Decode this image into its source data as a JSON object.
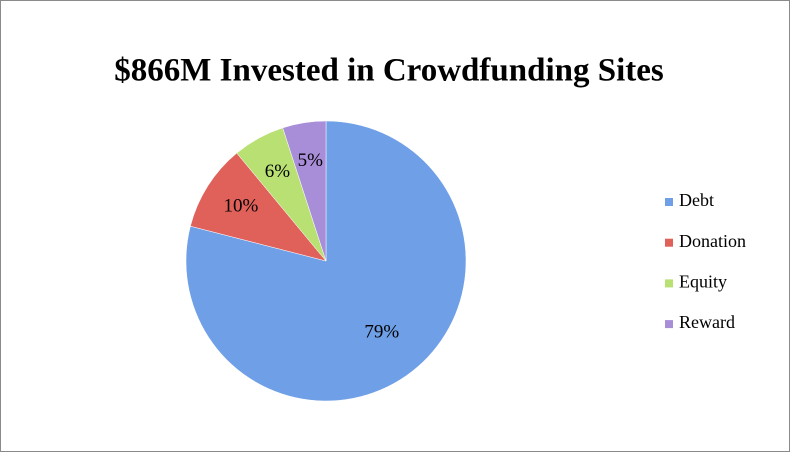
{
  "chart_data": {
    "type": "pie",
    "title": "$866M Invested in Crowdfunding Sites",
    "categories": [
      "Debt",
      "Donation",
      "Equity",
      "Reward"
    ],
    "values": [
      79,
      10,
      6,
      5
    ],
    "value_labels": [
      "79%",
      "10%",
      "6%",
      "5%"
    ],
    "colors": [
      "#6f9fe6",
      "#e0605a",
      "#b8e072",
      "#a88dd8"
    ],
    "legend": "right"
  }
}
